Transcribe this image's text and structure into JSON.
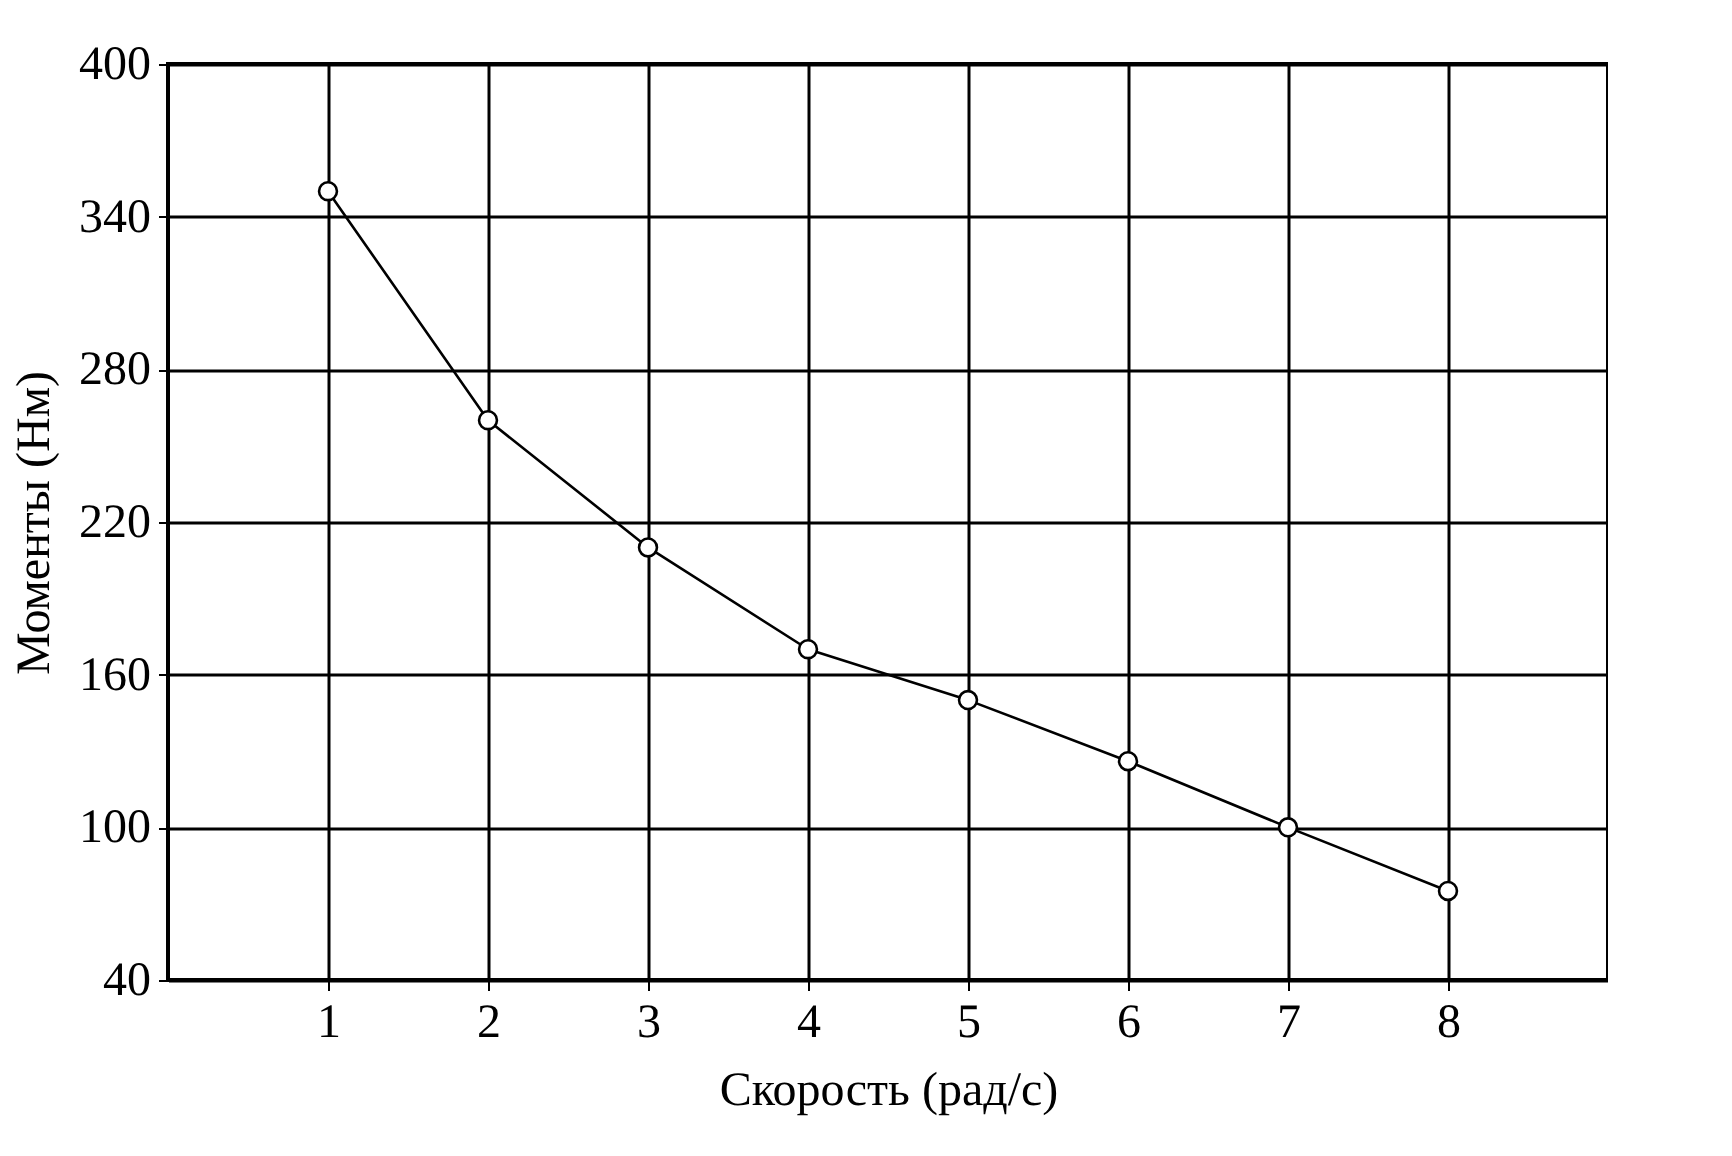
{
  "chart_data": {
    "type": "line",
    "xlabel": "Скорость (рад/с)",
    "ylabel": "Моменты (Нм)",
    "x": [
      1,
      2,
      3,
      4,
      5,
      6,
      7,
      8
    ],
    "series": [
      {
        "color": "#000000",
        "values": [
          350,
          260,
          210,
          170,
          150,
          126,
          100,
          75
        ]
      }
    ],
    "xlim": [
      0,
      9
    ],
    "xticks": [
      1,
      2,
      3,
      4,
      5,
      6,
      7,
      8
    ],
    "ylim": [
      40,
      400
    ],
    "yticks": [
      40,
      100,
      160,
      220,
      280,
      340,
      400
    ],
    "grid": true,
    "marker": "circle",
    "line_style": "solid"
  }
}
